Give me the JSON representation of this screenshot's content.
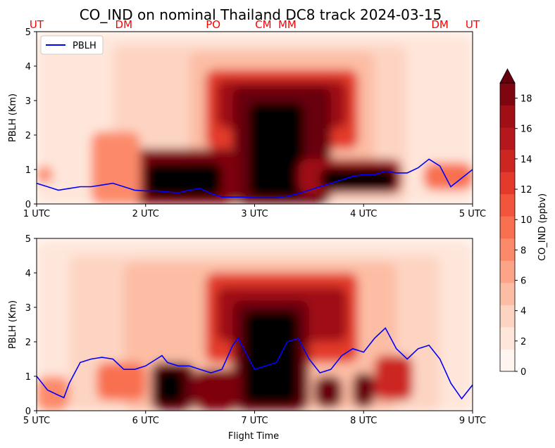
{
  "chart_data": {
    "type": "heatmap",
    "title": "CO_IND on nominal Thailand DC8 track 2024-03-15",
    "colorbar": {
      "label": "CO_IND (ppbv)",
      "ticks": [
        "0",
        "2",
        "4",
        "6",
        "8",
        "10",
        "12",
        "14",
        "16",
        "18"
      ],
      "range": [
        0,
        19
      ],
      "extend": "max",
      "colors": [
        "#fff5f0",
        "#fee6da",
        "#fdd4c2",
        "#fcbda4",
        "#fca487",
        "#fc8a6a",
        "#f87050",
        "#f2553c",
        "#e33a2c",
        "#cc2620",
        "#b6171c",
        "#a00f15",
        "#7f0510",
        "#67000d"
      ]
    },
    "legend": {
      "position": "upper-left",
      "entries": [
        {
          "label": "PBLH",
          "color": "#0000ff"
        }
      ]
    },
    "location_labels": [
      {
        "label": "UT",
        "x": 1.0
      },
      {
        "label": "DM",
        "x": 1.8
      },
      {
        "label": "PO",
        "x": 2.62
      },
      {
        "label": "CM",
        "x": 3.08
      },
      {
        "label": "MM",
        "x": 3.3
      },
      {
        "label": "DM",
        "x": 4.7
      },
      {
        "label": "UT",
        "x": 5.0
      }
    ],
    "panels": [
      {
        "name": "top",
        "xlim": [
          1,
          5
        ],
        "ylim": [
          0,
          5
        ],
        "xlabel": "",
        "ylabel": "PBLH (Km)",
        "xticks": [
          1,
          2,
          3,
          4,
          5
        ],
        "xtick_labels": [
          "1 UTC",
          "2 UTC",
          "3 UTC",
          "4 UTC",
          "5 UTC"
        ],
        "yticks": [
          0,
          1,
          2,
          3,
          4,
          5
        ],
        "ytick_labels": [
          "0",
          "1",
          "2",
          "3",
          "4",
          "5"
        ],
        "pblh": {
          "x": [
            1.0,
            1.1,
            1.2,
            1.3,
            1.4,
            1.5,
            1.6,
            1.7,
            1.8,
            1.9,
            2.0,
            2.1,
            2.2,
            2.3,
            2.4,
            2.5,
            2.6,
            2.7,
            2.8,
            2.9,
            3.0,
            3.1,
            3.2,
            3.3,
            3.4,
            3.5,
            3.6,
            3.7,
            3.8,
            3.9,
            4.0,
            4.1,
            4.2,
            4.3,
            4.4,
            4.5,
            4.6,
            4.7,
            4.8,
            4.9,
            5.0
          ],
          "y": [
            0.6,
            0.5,
            0.4,
            0.45,
            0.5,
            0.5,
            0.55,
            0.6,
            0.5,
            0.4,
            0.38,
            0.38,
            0.35,
            0.32,
            0.4,
            0.45,
            0.3,
            0.2,
            0.2,
            0.2,
            0.18,
            0.18,
            0.18,
            0.22,
            0.3,
            0.4,
            0.5,
            0.6,
            0.7,
            0.8,
            0.85,
            0.85,
            0.95,
            0.9,
            0.9,
            1.05,
            1.3,
            1.1,
            0.5,
            0.75,
            1.0
          ]
        },
        "plumes": [
          {
            "x": [
              1.0,
              5.0
            ],
            "y": [
              0.0,
              4.9
            ],
            "level": 1
          },
          {
            "x": [
              1.7,
              4.4
            ],
            "y": [
              0.0,
              4.6
            ],
            "level": 2
          },
          {
            "x": [
              2.4,
              4.1
            ],
            "y": [
              0.8,
              4.4
            ],
            "level": 3
          },
          {
            "x": [
              2.55,
              3.95
            ],
            "y": [
              1.6,
              3.9
            ],
            "level": 8
          },
          {
            "x": [
              2.65,
              3.85
            ],
            "y": [
              2.2,
              3.6
            ],
            "level": 11
          },
          {
            "x": [
              2.8,
              3.7
            ],
            "y": [
              0.0,
              3.4
            ],
            "level": 13
          },
          {
            "x": [
              2.95,
              3.45
            ],
            "y": [
              0.2,
              2.95
            ],
            "level": 14
          },
          {
            "x": [
              1.85,
              2.85
            ],
            "y": [
              0.0,
              1.6
            ],
            "level": 12
          },
          {
            "x": [
              2.0,
              2.7
            ],
            "y": [
              0.2,
              1.2
            ],
            "level": 14
          },
          {
            "x": [
              3.4,
              4.35
            ],
            "y": [
              0.3,
              1.3
            ],
            "level": 11
          },
          {
            "x": [
              3.6,
              4.3
            ],
            "y": [
              0.4,
              1.05
            ],
            "level": 14
          },
          {
            "x": [
              1.5,
              1.95
            ],
            "y": [
              0.0,
              2.1
            ],
            "level": 5
          },
          {
            "x": [
              1.0,
              1.15
            ],
            "y": [
              0.6,
              1.1
            ],
            "level": 5
          },
          {
            "x": [
              4.55,
              5.0
            ],
            "y": [
              0.4,
              1.2
            ],
            "level": 6
          }
        ]
      },
      {
        "name": "bottom",
        "xlim": [
          5,
          9
        ],
        "ylim": [
          0,
          5
        ],
        "xlabel": "Flight Time",
        "ylabel": "PBLH (Km)",
        "xticks": [
          5,
          6,
          7,
          8,
          9
        ],
        "xtick_labels": [
          "5 UTC",
          "6 UTC",
          "7 UTC",
          "8 UTC",
          "9 UTC"
        ],
        "yticks": [
          0,
          1,
          2,
          3,
          4,
          5
        ],
        "ytick_labels": [
          "0",
          "1",
          "2",
          "3",
          "4",
          "5"
        ],
        "pblh": {
          "x": [
            5.0,
            5.1,
            5.2,
            5.25,
            5.3,
            5.4,
            5.5,
            5.6,
            5.7,
            5.8,
            5.9,
            6.0,
            6.1,
            6.15,
            6.2,
            6.3,
            6.4,
            6.5,
            6.6,
            6.7,
            6.8,
            6.85,
            6.9,
            7.0,
            7.1,
            7.2,
            7.3,
            7.4,
            7.5,
            7.6,
            7.7,
            7.8,
            7.9,
            8.0,
            8.1,
            8.2,
            8.3,
            8.4,
            8.5,
            8.6,
            8.7,
            8.8,
            8.9,
            9.0
          ],
          "y": [
            1.0,
            0.6,
            0.45,
            0.38,
            0.8,
            1.4,
            1.5,
            1.55,
            1.5,
            1.2,
            1.2,
            1.3,
            1.5,
            1.6,
            1.4,
            1.3,
            1.3,
            1.2,
            1.1,
            1.2,
            1.9,
            2.1,
            1.8,
            1.2,
            1.3,
            1.4,
            2.0,
            2.1,
            1.5,
            1.1,
            1.2,
            1.6,
            1.8,
            1.7,
            2.1,
            2.4,
            1.8,
            1.5,
            1.8,
            1.9,
            1.5,
            0.8,
            0.35,
            0.75
          ]
        },
        "plumes": [
          {
            "x": [
              5.0,
              9.0
            ],
            "y": [
              0.0,
              4.9
            ],
            "level": 1
          },
          {
            "x": [
              5.3,
              8.7
            ],
            "y": [
              0.0,
              4.5
            ],
            "level": 2
          },
          {
            "x": [
              5.8,
              8.3
            ],
            "y": [
              0.0,
              4.3
            ],
            "level": 3
          },
          {
            "x": [
              6.55,
              7.95
            ],
            "y": [
              1.4,
              4.0
            ],
            "level": 8
          },
          {
            "x": [
              6.65,
              7.85
            ],
            "y": [
              2.0,
              3.6
            ],
            "level": 11
          },
          {
            "x": [
              6.8,
              7.5
            ],
            "y": [
              0.0,
              3.2
            ],
            "level": 13
          },
          {
            "x": [
              6.9,
              7.4
            ],
            "y": [
              0.2,
              2.9
            ],
            "level": 14
          },
          {
            "x": [
              6.05,
              6.45
            ],
            "y": [
              0.0,
              1.4
            ],
            "level": 13
          },
          {
            "x": [
              6.1,
              6.35
            ],
            "y": [
              0.2,
              1.2
            ],
            "level": 14
          },
          {
            "x": [
              6.45,
              6.85
            ],
            "y": [
              0.0,
              1.2
            ],
            "level": 12
          },
          {
            "x": [
              7.55,
              7.8
            ],
            "y": [
              0.1,
              1.0
            ],
            "level": 13
          },
          {
            "x": [
              7.9,
              8.1
            ],
            "y": [
              0.1,
              1.1
            ],
            "level": 13
          },
          {
            "x": [
              8.1,
              8.45
            ],
            "y": [
              0.3,
              1.6
            ],
            "level": 9
          },
          {
            "x": [
              5.0,
              5.3
            ],
            "y": [
              0.0,
              1.0
            ],
            "level": 5
          },
          {
            "x": [
              5.55,
              6.0
            ],
            "y": [
              0.3,
              1.4
            ],
            "level": 6
          }
        ]
      }
    ]
  }
}
